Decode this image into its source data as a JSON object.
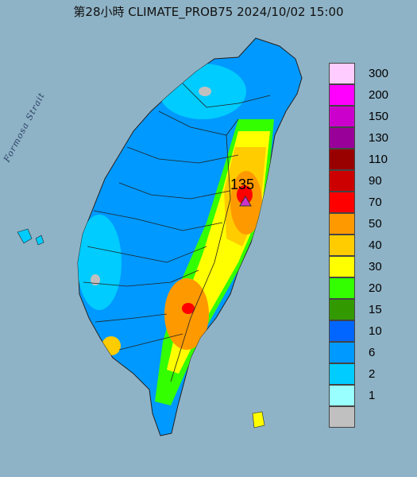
{
  "title": "第28小時  CLIMATE_PROB75 2024/10/02 15:00",
  "map_labels": {
    "strait": "Formosa Strait"
  },
  "max_point": {
    "value": "135",
    "marker_color": "#cc33cc"
  },
  "legend": {
    "items": [
      {
        "label": "300",
        "color": "#ffccff"
      },
      {
        "label": "200",
        "color": "#ff00ff"
      },
      {
        "label": "150",
        "color": "#cc00cc"
      },
      {
        "label": "130",
        "color": "#990099"
      },
      {
        "label": "110",
        "color": "#990000"
      },
      {
        "label": "90",
        "color": "#cc0000"
      },
      {
        "label": "70",
        "color": "#ff0000"
      },
      {
        "label": "50",
        "color": "#ff9900"
      },
      {
        "label": "40",
        "color": "#ffcc00"
      },
      {
        "label": "30",
        "color": "#ffff00"
      },
      {
        "label": "20",
        "color": "#33ff00"
      },
      {
        "label": "15",
        "color": "#339900"
      },
      {
        "label": "10",
        "color": "#0066ff"
      },
      {
        "label": "6",
        "color": "#0099ff"
      },
      {
        "label": "2",
        "color": "#00ccff"
      },
      {
        "label": "1",
        "color": "#99ffff"
      },
      {
        "label": "",
        "color": "#c0c0c0"
      }
    ]
  },
  "colors": {
    "sea": "#8fb3c6",
    "no_data": "#c0c0c0",
    "county_border": "#222222"
  }
}
